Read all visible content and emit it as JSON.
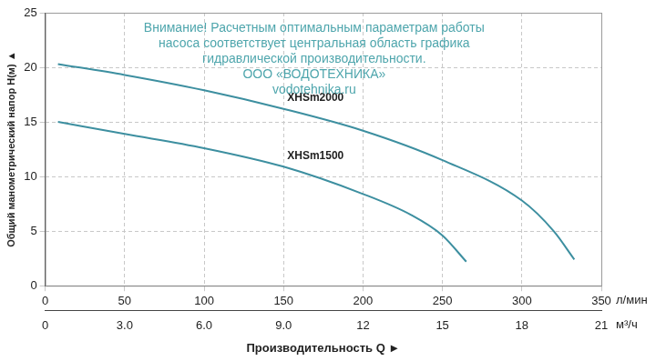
{
  "chart_data": {
    "type": "line",
    "annotations": [
      "Внимание! Расчетным оптимальным параметрам работы",
      "насоса соответствует центральная область графика",
      "гидравлической производительности.",
      "ООО «ВОДОТЕХНИКА»",
      "vodotehnika.ru"
    ],
    "y_label": "Общий манометрический напор H(м) ▲",
    "x_label": "Производительность Q ►",
    "x_unit": "л/мин",
    "x2_unit": "м³/ч",
    "series": [
      {
        "name": "XHSm2000",
        "color": "#3d8fa0",
        "x": [
          8,
          50,
          100,
          150,
          200,
          250,
          300,
          320,
          333
        ],
        "values": [
          20.3,
          19.3,
          17.9,
          16.2,
          14.2,
          11.5,
          7.8,
          5.0,
          2.4
        ]
      },
      {
        "name": "XHSm1500",
        "color": "#3d8fa0",
        "x": [
          8,
          50,
          100,
          150,
          200,
          230,
          250,
          265
        ],
        "values": [
          15.0,
          13.9,
          12.6,
          10.9,
          8.4,
          6.5,
          4.6,
          2.2
        ]
      }
    ],
    "xlim": [
      0,
      350
    ],
    "xticks": [
      0,
      50,
      100,
      150,
      200,
      250,
      300,
      350
    ],
    "x2lim": [
      0,
      21
    ],
    "x2ticks": [
      0,
      {
        "value": 3,
        "label": "3.0"
      },
      {
        "value": 6,
        "label": "6.0"
      },
      {
        "value": 9,
        "label": "9.0"
      },
      12,
      15,
      18,
      21
    ],
    "ylim": [
      0,
      25
    ],
    "yticks": [
      0,
      5,
      10,
      15,
      20,
      25
    ],
    "grid": true
  }
}
